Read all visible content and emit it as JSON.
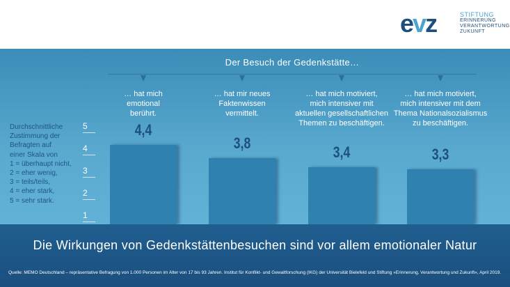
{
  "logo": {
    "mark": "evz",
    "line1": "STIFTUNG",
    "line2": "ERINNERUNG",
    "line3": "VERANTWORTUNG",
    "line4": "ZUKUNFT"
  },
  "chart_data": {
    "type": "bar",
    "header": "Der Besuch der Gedenkstätte…",
    "categories": [
      "… hat mich\nemotional\nberührt.",
      "… hat mir neues\nFaktenwissen\nvermittelt.",
      "… hat mich motiviert,\nmich intensiver mit\naktuellen gesellschaftlichen\nThemen zu beschäftigen.",
      "… hat mich motiviert,\nmich intensiver mit dem\nThema Nationalsozialismus\nzu beschäftigen."
    ],
    "values": [
      4.4,
      3.8,
      3.4,
      3.3
    ],
    "value_labels": [
      "4,4",
      "3,8",
      "3,4",
      "3,3"
    ],
    "ylabel": "Durchschnittliche\nZustimmung der\nBefragten auf\neiner Skala von\n1 = überhaupt nicht,\n2 = eher wenig,\n3 = teils/teils,\n4 = eher stark,\n5 = sehr stark.",
    "yticks": [
      "5",
      "4",
      "3",
      "2",
      "1"
    ],
    "ylim": [
      1,
      5
    ],
    "title": "Die Wirkungen von Gedenkstättenbesuchen sind vor allem emotionaler Natur",
    "source": "Quelle: MEMO Deutschland – repräsentative Befragung von 1.000 Personen im Alter von 17 bis 93 Jahren. Institut für Konflikt- und Gewaltforschung (IKG) der Universität Bielefeld und Stiftung »Erinnerung, Verantwortung und Zukunft«, April 2019."
  }
}
